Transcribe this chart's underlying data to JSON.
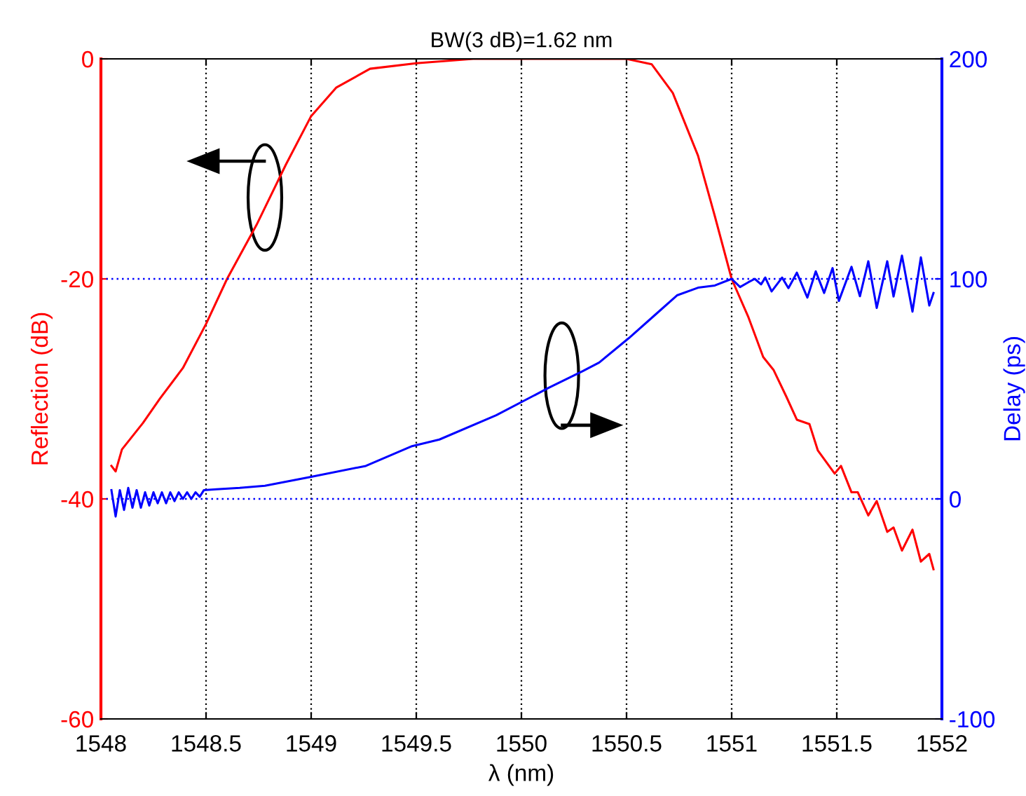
{
  "chart_data": {
    "type": "line",
    "title": "BW(3 dB)=1.62 nm",
    "xlabel": "λ (nm)",
    "ylabel": "Reflection (dB)",
    "y2label": "Delay (ps)",
    "xlim": [
      1548,
      1552
    ],
    "xticks": [
      1548,
      1548.5,
      1549,
      1549.5,
      1550,
      1550.5,
      1551,
      1551.5,
      1552
    ],
    "ylim": [
      -60,
      0
    ],
    "yticks": [
      -60,
      -40,
      -20,
      0
    ],
    "y2lim": [
      -100,
      200
    ],
    "y2ticks": [
      -100,
      0,
      100,
      200
    ],
    "grid": "x",
    "line_style": "solid",
    "ref_lines": [
      {
        "axis": "y2",
        "value": 0,
        "color": "#0000ff",
        "line_style": "dotted"
      },
      {
        "axis": "y2",
        "value": 100,
        "color": "#0000ff",
        "line_style": "dotted"
      }
    ],
    "series": [
      {
        "color": "#ff0000",
        "x": [
          1548.05,
          1548.07,
          1548.1,
          1548.2,
          1548.28,
          1548.39,
          1548.5,
          1548.6,
          1548.74,
          1548.88,
          1549.0,
          1549.12,
          1549.28,
          1549.5,
          1549.77,
          1550.5,
          1550.62,
          1550.72,
          1550.84,
          1550.92,
          1551.0,
          1551.08,
          1551.15,
          1551.2,
          1551.26,
          1551.31,
          1551.37,
          1551.41,
          1551.49,
          1551.52,
          1551.57,
          1551.6,
          1551.65,
          1551.69,
          1551.74,
          1551.77,
          1551.81,
          1551.86,
          1551.9,
          1551.94,
          1551.96
        ],
        "values": [
          -37.0,
          -37.5,
          -35.5,
          -33.1,
          -30.9,
          -28.1,
          -24.1,
          -20.0,
          -15.1,
          -9.6,
          -5.2,
          -2.6,
          -0.9,
          -0.4,
          0,
          0,
          -0.5,
          -3.1,
          -8.8,
          -14.3,
          -20.0,
          -23.5,
          -27.1,
          -28.3,
          -30.7,
          -32.8,
          -33.2,
          -35.6,
          -37.7,
          -37.0,
          -39.4,
          -39.4,
          -41.5,
          -40.2,
          -43.0,
          -42.6,
          -44.7,
          -42.8,
          -45.7,
          -45.0,
          -46.4
        ]
      },
      {
        "color": "#0000ff",
        "axis": "y2",
        "x": [
          1548.05,
          1548.07,
          1548.09,
          1548.11,
          1548.13,
          1548.15,
          1548.17,
          1548.19,
          1548.21,
          1548.23,
          1548.25,
          1548.27,
          1548.29,
          1548.31,
          1548.33,
          1548.35,
          1548.37,
          1548.39,
          1548.41,
          1548.43,
          1548.45,
          1548.47,
          1548.49,
          1548.55,
          1548.66,
          1548.78,
          1549.0,
          1549.26,
          1549.48,
          1549.61,
          1549.88,
          1550.13,
          1550.29,
          1550.37,
          1550.51,
          1550.64,
          1550.74,
          1550.84,
          1550.92,
          1551.0,
          1551.04,
          1551.08,
          1551.11,
          1551.14,
          1551.16,
          1551.19,
          1551.24,
          1551.27,
          1551.31,
          1551.36,
          1551.4,
          1551.44,
          1551.48,
          1551.51,
          1551.57,
          1551.61,
          1551.65,
          1551.69,
          1551.74,
          1551.77,
          1551.81,
          1551.86,
          1551.9,
          1551.94,
          1551.96
        ],
        "values": [
          4,
          -8,
          4,
          -5,
          5,
          -4,
          4,
          -4,
          3,
          -3,
          3,
          -2,
          3,
          -2,
          3,
          -1,
          3,
          0,
          3,
          0,
          3,
          1,
          4,
          4.4,
          5,
          6,
          10,
          15,
          24,
          27,
          38,
          50.5,
          58,
          62,
          73,
          84,
          92.5,
          96,
          97,
          100,
          96.3,
          98.5,
          100,
          97.5,
          100.6,
          94.3,
          100.6,
          95.8,
          102.8,
          91.5,
          103.4,
          93.6,
          104.9,
          90,
          105.5,
          92.1,
          108,
          86.8,
          108,
          92,
          110.6,
          85.1,
          109.8,
          87.9,
          93.6
        ]
      }
    ]
  }
}
